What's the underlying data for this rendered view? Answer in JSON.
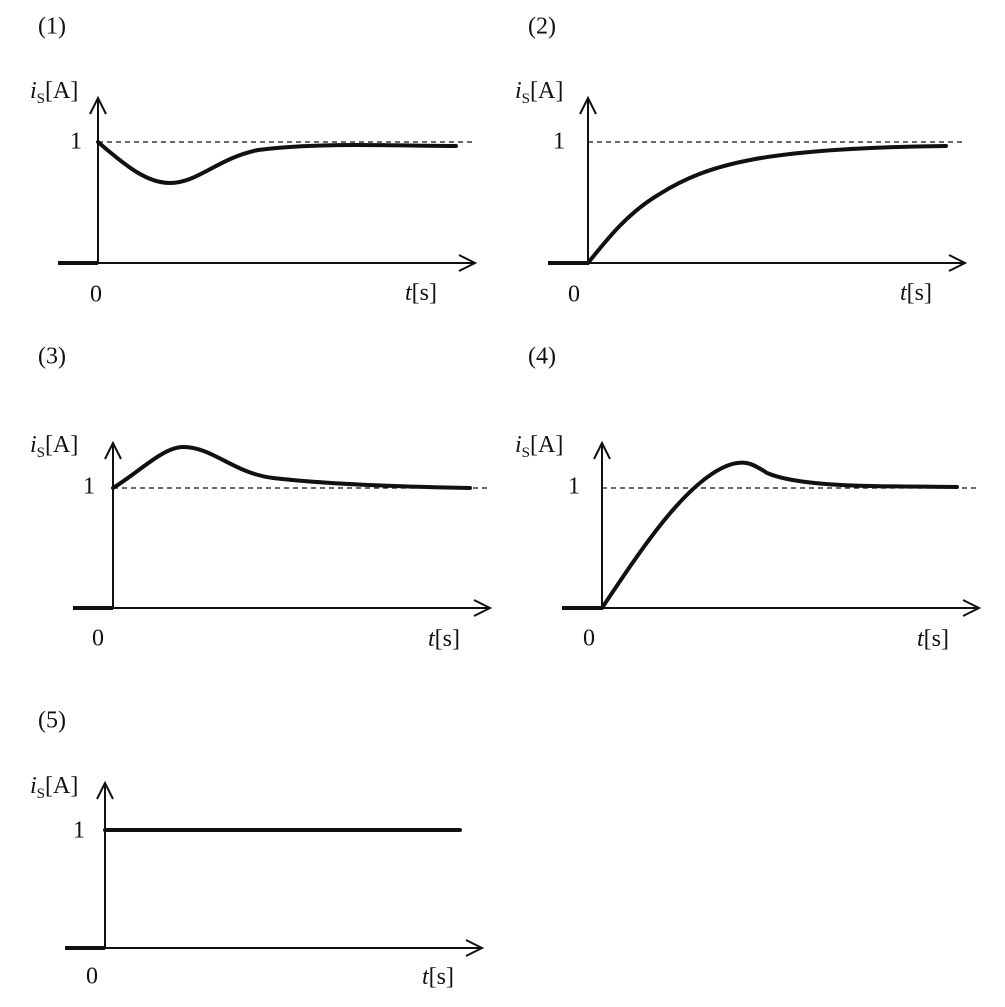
{
  "graphs": [
    {
      "label": "(1)",
      "y_axis": {
        "symbol": "i",
        "subscript": "S",
        "unit": "[A]"
      },
      "level_label": "1",
      "origin_label": "0",
      "x_axis": {
        "symbol": "t",
        "unit": "[s]"
      }
    },
    {
      "label": "(2)",
      "y_axis": {
        "symbol": "i",
        "subscript": "S",
        "unit": "[A]"
      },
      "level_label": "1",
      "origin_label": "0",
      "x_axis": {
        "symbol": "t",
        "unit": "[s]"
      }
    },
    {
      "label": "(3)",
      "y_axis": {
        "symbol": "i",
        "subscript": "S",
        "unit": "[A]"
      },
      "level_label": "1",
      "origin_label": "0",
      "x_axis": {
        "symbol": "t",
        "unit": "[s]"
      }
    },
    {
      "label": "(4)",
      "y_axis": {
        "symbol": "i",
        "subscript": "S",
        "unit": "[A]"
      },
      "level_label": "1",
      "origin_label": "0",
      "x_axis": {
        "symbol": "t",
        "unit": "[s]"
      }
    },
    {
      "label": "(5)",
      "y_axis": {
        "symbol": "i",
        "subscript": "S",
        "unit": "[A]"
      },
      "level_label": "1",
      "origin_label": "0",
      "x_axis": {
        "symbol": "t",
        "unit": "[s]"
      }
    }
  ]
}
